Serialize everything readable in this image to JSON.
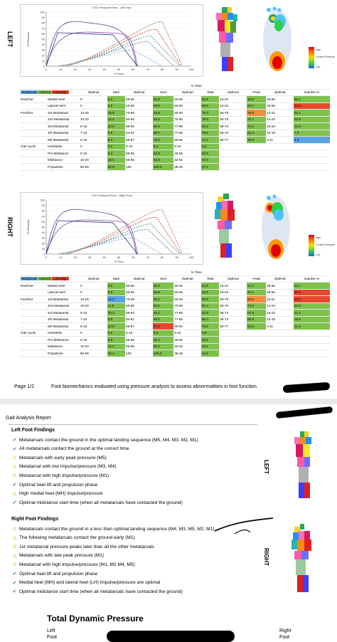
{
  "left": {
    "side": "LEFT",
    "chart": {
      "title": "TOG Pressure/Time - Left Foot",
      "ylabel": "% Pressure",
      "xlabel": "% Time"
    },
    "legend": {
      "high": "High",
      "contact": "Contact Pressure",
      "low": "Low"
    }
  },
  "right": {
    "side": "RIGHT",
    "chart": {
      "title": "TOG Pressure/Time - Right Foot",
      "ylabel": "% Pressure",
      "xlabel": "% Time"
    },
    "legend": {
      "high": "High",
      "contact": "Contact Pressure",
      "low": "Low"
    }
  },
  "table_header": {
    "early": "Early/Low",
    "optimal": "Optimal",
    "late": "Late/High",
    "time_group": "% Time",
    "cols": [
      "Optimal",
      "Start",
      "Optimal",
      "End",
      "Optimal",
      "Total",
      "Optimal",
      "Peak",
      "Optimal",
      "Impulse %"
    ]
  },
  "left_rows": [
    [
      "Rearfoot",
      "Medial Heel",
      "0",
      "0.0",
      "50-65",
      "63.9",
      "50-65",
      "62.9",
      "15-22",
      "18.6",
      "45-55",
      "56.7"
    ],
    [
      "",
      "Lateral Heel",
      "0",
      "0.0",
      "50-65",
      "63.9",
      "50-65",
      "60.8",
      "15-22",
      "24.7",
      "45-55",
      "43.3"
    ],
    [
      "Forefoot",
      "1st Metatarsal",
      "13-25",
      "15.5",
      "73-96",
      "94.8",
      "60-83",
      "79.4",
      "50-78",
      "76.8",
      "13-21",
      "51.1"
    ],
    [
      "",
      "2nd Metatarsal",
      "10-20",
      "14.4",
      "80-95",
      "94.3",
      "70-85",
      "79.9",
      "60-75",
      "72.7",
      "14-24",
      "23.9"
    ],
    [
      "",
      "3rd Metatarsal",
      "8-16",
      "10.8",
      "85-93",
      "92.8",
      "77-85",
      "82.0",
      "59-74",
      "71.1",
      "15-23",
      "13.2"
    ],
    [
      "",
      "4th Metatarsal",
      "7-15",
      "8.8",
      "84-92",
      "88.7",
      "77-85",
      "79.9",
      "55-73",
      "64.4",
      "10-18",
      "7.9"
    ],
    [
      "",
      "5th Metatarsal",
      "5-15",
      "8.2",
      "65-87",
      "79.4",
      "60-82",
      "71.1",
      "50-77",
      "29.9",
      "4-11",
      "4.0"
    ],
    [
      "Gait Cycle",
      "Heelstrike",
      "0",
      "0.0",
      "5-15",
      "8.2",
      "5-15",
      "8.2",
      "",
      "",
      "",
      ""
    ],
    [
      "",
      "Pre-Midstance",
      "5-15",
      "8.2",
      "55-65",
      "62.9",
      "45-55",
      "54.6",
      "",
      "",
      "",
      ""
    ],
    [
      "",
      "Midstance",
      "10-20",
      "15.5",
      "55-65",
      "62.9",
      "42-52",
      "47.4",
      "",
      "",
      "",
      ""
    ],
    [
      "",
      "Propulsion",
      "50-65",
      "62.9",
      "100",
      "100.0",
      "35-45",
      "37.1",
      "",
      "",
      "",
      ""
    ]
  ],
  "left_colors": [
    [
      "g",
      "g",
      "g",
      "g",
      "g",
      "r"
    ],
    [
      "g",
      "g",
      "g",
      "g",
      "r",
      "r"
    ],
    [
      "g",
      "g",
      "g",
      "o",
      "g",
      "r"
    ],
    [
      "g",
      "g",
      "g",
      "g",
      "g",
      "g"
    ],
    [
      "g",
      "g",
      "g",
      "g",
      "g",
      "b"
    ],
    [
      "g",
      "g",
      "g",
      "g",
      "g",
      "b"
    ],
    [
      "g",
      "g",
      "g",
      "g",
      "b",
      "b"
    ],
    [
      "g",
      "g",
      "g",
      "",
      "",
      ""
    ],
    [
      "g",
      "g",
      "g",
      "",
      "",
      ""
    ],
    [
      "g",
      "g",
      "g",
      "",
      "",
      ""
    ],
    [
      "g",
      "g",
      "g",
      "",
      "",
      ""
    ]
  ],
  "right_rows": [
    [
      "Rearfoot",
      "Medial Heel",
      "0",
      "0.0",
      "50-65",
      "55.9",
      "50-65",
      "54.9",
      "15-22",
      "17.2",
      "45-55",
      "54.7"
    ],
    [
      "",
      "Lateral Heel",
      "0",
      "0.0",
      "50-65",
      "55.9",
      "50-65",
      "53.9",
      "15-22",
      "22.1",
      "45-55",
      "45.3"
    ],
    [
      "Forefoot",
      "1st Metatarsal",
      "13-25",
      "12.3",
      "73-96",
      "93.1",
      "60-83",
      "80.9",
      "50-78",
      "83.8",
      "13-21",
      "23.2"
    ],
    [
      "",
      "2nd Metatarsal",
      "10-20",
      "11.8",
      "80-95",
      "93.1",
      "70-85",
      "81.4",
      "60-75",
      "74.0",
      "14-24",
      "24.5"
    ],
    [
      "",
      "3rd Metatarsal",
      "8-16",
      "10.3",
      "85-93",
      "92.2",
      "77-85",
      "81.9",
      "59-74",
      "67.6",
      "15-23",
      "21.1"
    ],
    [
      "",
      "4th Metatarsal",
      "7-15",
      "9.8",
      "84-92",
      "90.2",
      "77-85",
      "80.4",
      "55-73",
      "56.9",
      "10-18",
      "19.6"
    ],
    [
      "",
      "5th Metatarsal",
      "5-15",
      "10.8",
      "65-87",
      "87.3",
      "60-82",
      "76.5",
      "50-77",
      "53.9",
      "4-11",
      "11.6"
    ],
    [
      "Gait Cycle",
      "Heelstrike",
      "0",
      "0.0",
      "5-15",
      "9.8",
      "5-15",
      "9.8",
      "",
      "",
      "",
      ""
    ],
    [
      "",
      "Pre-Midstance",
      "5-15",
      "9.8",
      "55-65",
      "55.4",
      "45-55",
      "45.6",
      "",
      "",
      "",
      ""
    ],
    [
      "",
      "Midstance",
      "10-20",
      "12.3",
      "55-65",
      "55.4",
      "42-52",
      "43.1",
      "",
      "",
      "",
      ""
    ],
    [
      "",
      "Propulsion",
      "50-65",
      "55.4",
      "100",
      "100.0",
      "35-45",
      "44.6",
      "",
      "",
      "",
      ""
    ]
  ],
  "right_colors": [
    [
      "g",
      "g",
      "g",
      "g",
      "g",
      "g"
    ],
    [
      "g",
      "g",
      "g",
      "g",
      "r",
      "g"
    ],
    [
      "b",
      "g",
      "g",
      "o",
      "r",
      "r"
    ],
    [
      "g",
      "g",
      "g",
      "g",
      "g",
      "r"
    ],
    [
      "g",
      "g",
      "g",
      "g",
      "g",
      "r"
    ],
    [
      "g",
      "g",
      "g",
      "g",
      "g",
      "o"
    ],
    [
      "g",
      "r",
      "g",
      "g",
      "g",
      "o"
    ],
    [
      "g",
      "g",
      "g",
      "",
      "",
      ""
    ],
    [
      "g",
      "g",
      "g",
      "",
      "",
      ""
    ],
    [
      "g",
      "g",
      "g",
      "",
      "",
      ""
    ],
    [
      "g",
      "g",
      "g",
      "",
      "",
      ""
    ]
  ],
  "footer": {
    "page": "Page 1/2",
    "text": "Foot biomechanics evaluated using pressure analysis to assess abnormalities in foot function."
  },
  "report": {
    "title": "Gait Analysis Report",
    "left_title": "Left Foot Findings",
    "left_findings": [
      {
        "mark": "ok",
        "text": "Metatarsals contact the ground in the optimal landing sequence (M5, M4, M3, M2, M1)"
      },
      {
        "mark": "ok",
        "text": "All metatarsals contact the ground at the correct time."
      },
      {
        "mark": "warn",
        "text": "Metatarsals with early peak pressure (M5)"
      },
      {
        "mark": "warn",
        "text": "Metatarsal with low impulse/pressure (M3, M4)"
      },
      {
        "mark": "warn",
        "text": "Metatarsal with high impulse/pressure (M1)"
      },
      {
        "mark": "ok",
        "text": "Optimal heel lift and propulsion phase"
      },
      {
        "mark": "warn",
        "text": "High medial heel (MH) impulse/pressure"
      },
      {
        "mark": "ok",
        "text": "Optimal midstance start time (when all metatarsals have contacted the ground)"
      }
    ],
    "right_title": "Right Foot Findings",
    "right_findings": [
      {
        "mark": "warn",
        "text": "Metatarsals contact the ground in a less than optimal landing sequence (M4, M3, M5, M2, M1)"
      },
      {
        "mark": "warn",
        "text": "The following metatarsals contact the ground early (M1)"
      },
      {
        "mark": "warn",
        "text": "1st metatarsal pressure peaks later than all the other metatarsals"
      },
      {
        "mark": "warn",
        "text": "Metatarsals with late peak pressure (M1)"
      },
      {
        "mark": "warn",
        "text": "Metatarsal with high impulse/pressure (M1, M2 M4, M5)"
      },
      {
        "mark": "ok",
        "text": "Optimal heel lift and propulsion phase"
      },
      {
        "mark": "ok",
        "text": "Medial heel (MH) and lateral heel (LH) impulse/pressure are optimal"
      },
      {
        "mark": "ok",
        "text": "Optimal midstance start time (when all metatarsals have contacted the ground)"
      }
    ],
    "left_label": "LEFT",
    "right_label": "RIGHT"
  },
  "total": {
    "title": "Total Dynamic Pressure",
    "left_label": "Left",
    "left_sub": "Foot",
    "right_label": "Right",
    "right_sub": "Foot"
  },
  "chart_data": [
    {
      "type": "line",
      "title": "TOG Pressure/Time - Left Foot",
      "xlabel": "% Time",
      "ylabel": "% Pressure",
      "xlim": [
        0,
        100
      ],
      "ylim": [
        0,
        100
      ],
      "x_ticks": [
        0,
        10,
        20,
        30,
        40,
        50,
        60,
        70,
        80,
        90,
        100
      ],
      "y_ticks": [
        0,
        10,
        20,
        30,
        40,
        50,
        60,
        70,
        80,
        90,
        100
      ]
    },
    {
      "type": "line",
      "title": "TOG Pressure/Time - Right Foot",
      "xlabel": "% Time",
      "ylabel": "% Pressure",
      "xlim": [
        0,
        100
      ],
      "ylim": [
        0,
        100
      ],
      "x_ticks": [
        0,
        10,
        20,
        30,
        40,
        50,
        60,
        70,
        80,
        90,
        100
      ],
      "y_ticks": [
        0,
        10,
        20,
        30,
        40,
        50,
        60,
        70,
        80,
        90,
        100
      ]
    }
  ]
}
